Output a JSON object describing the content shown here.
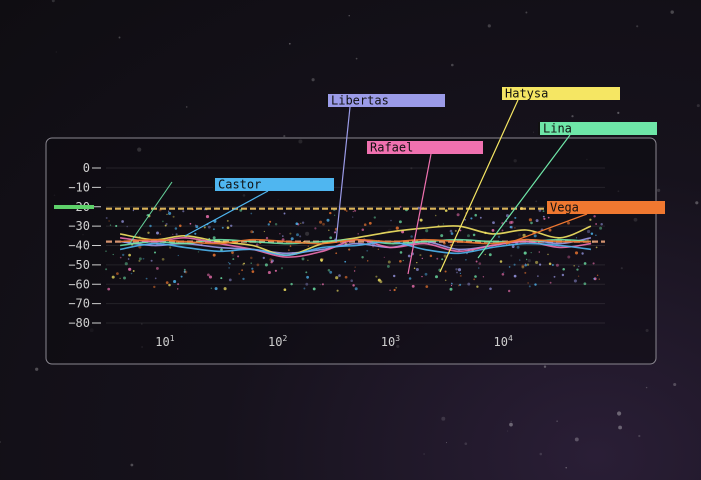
{
  "chart_data": {
    "type": "line",
    "title": "",
    "xlabel": "",
    "ylabel": "",
    "x_scale": "log",
    "xlim": [
      3,
      80000
    ],
    "ylim": [
      -80,
      0
    ],
    "xticks": [
      {
        "value": 10,
        "base": "10",
        "exp": "1"
      },
      {
        "value": 100,
        "base": "10",
        "exp": "2"
      },
      {
        "value": 1000,
        "base": "10",
        "exp": "3"
      },
      {
        "value": 10000,
        "base": "10",
        "exp": "4"
      }
    ],
    "yticks": [
      0,
      -10,
      -20,
      -30,
      -40,
      -50,
      -60,
      -70,
      -80
    ],
    "grid": true,
    "reference_lines": [
      {
        "y": -21,
        "color": "#ffd166"
      },
      {
        "y": -38,
        "color": "#f5a97f"
      }
    ],
    "series": [
      {
        "name": "Libertas",
        "color": "#9b9be8",
        "x": [
          4,
          8,
          15,
          30,
          60,
          120,
          250,
          500,
          1000,
          2000,
          4000,
          8000,
          16000,
          32000,
          60000
        ],
        "y": [
          -38,
          -40,
          -39,
          -41,
          -42,
          -44,
          -42,
          -39,
          -41,
          -38,
          -42,
          -40,
          -37,
          -39,
          -36
        ]
      },
      {
        "name": "Hatysa",
        "color": "#f5e663",
        "x": [
          4,
          8,
          15,
          30,
          60,
          120,
          250,
          500,
          1000,
          2000,
          4000,
          8000,
          16000,
          32000,
          60000
        ],
        "y": [
          -34,
          -37,
          -35,
          -38,
          -40,
          -45,
          -39,
          -36,
          -33,
          -31,
          -30,
          -34,
          -32,
          -36,
          -30
        ]
      },
      {
        "name": "Lina",
        "color": "#6ee6a8",
        "x": [
          4,
          8,
          15,
          30,
          60,
          120,
          250,
          500,
          1000,
          2000,
          4000,
          8000,
          16000,
          32000,
          60000
        ],
        "y": [
          -40,
          -38,
          -39,
          -37,
          -38,
          -39,
          -38,
          -37,
          -39,
          -38,
          -37,
          -38,
          -38,
          -37,
          -38
        ]
      },
      {
        "name": "Rafael",
        "color": "#f071b0",
        "x": [
          4,
          8,
          15,
          30,
          60,
          120,
          250,
          500,
          1000,
          2000,
          4000,
          8000,
          16000,
          32000,
          60000
        ],
        "y": [
          -36,
          -38,
          -36,
          -39,
          -42,
          -46,
          -43,
          -37,
          -41,
          -39,
          -43,
          -40,
          -38,
          -41,
          -39
        ]
      },
      {
        "name": "Castor",
        "color": "#4fb6f0",
        "x": [
          4,
          8,
          15,
          30,
          60,
          120,
          250,
          500,
          1000,
          2000,
          4000,
          8000,
          16000,
          32000,
          60000
        ],
        "y": [
          -42,
          -39,
          -41,
          -43,
          -42,
          -45,
          -41,
          -40,
          -38,
          -42,
          -44,
          -41,
          -39,
          -40,
          -42
        ]
      },
      {
        "name": "Vega",
        "color": "#f07830",
        "x": [
          4,
          8,
          15,
          30,
          60,
          120,
          250,
          500,
          1000,
          2000,
          4000,
          8000,
          16000,
          32000,
          60000
        ],
        "y": [
          -38,
          -37,
          -38,
          -39,
          -37,
          -38,
          -39,
          -37,
          -38,
          -37,
          -38,
          -39,
          -37,
          -38,
          -38
        ]
      }
    ],
    "annotations": [
      {
        "text": "Castor",
        "series": "Castor",
        "color": "#4fb6f0"
      },
      {
        "text": "Libertas",
        "series": "Libertas",
        "color": "#9b9be8"
      },
      {
        "text": "Rafael",
        "series": "Rafael",
        "color": "#f071b0"
      },
      {
        "text": "Hatysa",
        "series": "Hatysa",
        "color": "#f5e663"
      },
      {
        "text": "Lina",
        "series": "Lina",
        "color": "#6ee6a8"
      },
      {
        "text": "Vega",
        "series": "Vega",
        "color": "#f07830"
      }
    ],
    "left_marker_color": "#5ed16a"
  }
}
